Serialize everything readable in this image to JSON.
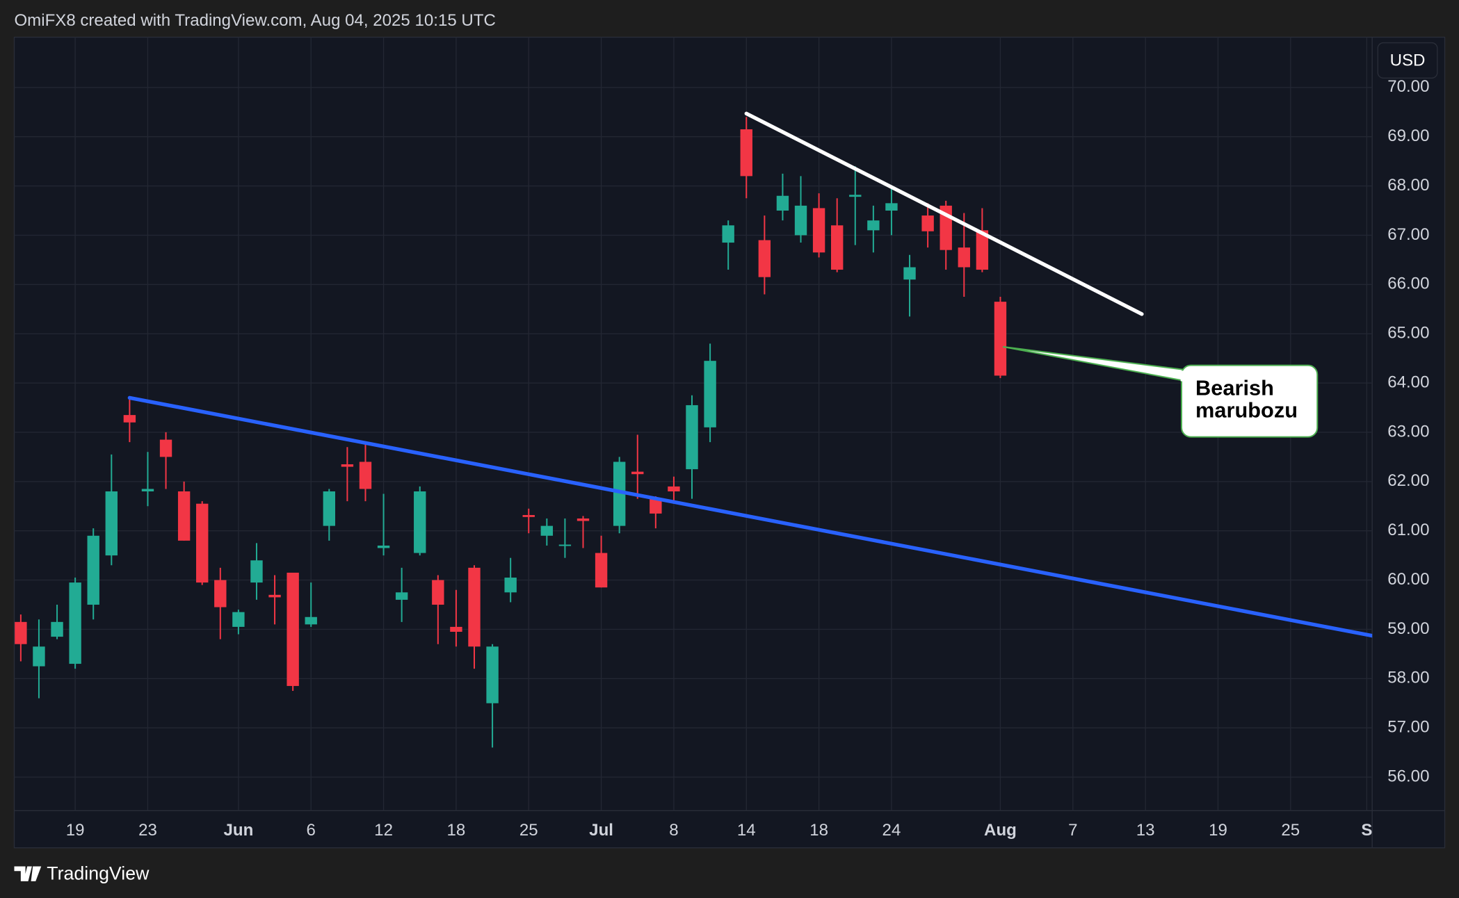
{
  "chart_data": {
    "type": "candlestick",
    "title": "OmiFX8 created with TradingView.com, Aug 04, 2025 10:15 UTC",
    "x": [
      0,
      1,
      2,
      3,
      4,
      5,
      6,
      7,
      8,
      9,
      10,
      11,
      12,
      13,
      14,
      15,
      16,
      17,
      18,
      19,
      20,
      21,
      22,
      23,
      24,
      25,
      26,
      27,
      28,
      29,
      30,
      31,
      32,
      33,
      34,
      35,
      36,
      37,
      38,
      39,
      40,
      41,
      42,
      43,
      44,
      45,
      46,
      47,
      48,
      49,
      50,
      51,
      52,
      53,
      54
    ],
    "open": [
      59.15,
      58.25,
      58.85,
      58.3,
      59.5,
      60.5,
      63.35,
      61.8,
      62.85,
      61.8,
      61.55,
      60.0,
      59.05,
      59.95,
      59.7,
      60.15,
      59.1,
      61.1,
      62.35,
      62.4,
      60.65,
      59.6,
      60.55,
      60.0,
      59.05,
      60.25,
      57.5,
      59.75,
      61.32,
      60.9,
      60.7,
      61.25,
      60.55,
      61.1,
      62.2,
      61.65,
      61.9,
      62.25,
      63.1,
      66.85,
      69.15,
      66.9,
      67.5,
      67.0,
      67.55,
      67.2,
      67.78,
      67.1,
      67.5,
      66.1,
      67.4,
      67.6,
      66.75,
      67.1,
      65.65
    ],
    "high": [
      59.3,
      59.2,
      59.5,
      60.05,
      61.05,
      62.55,
      63.7,
      62.6,
      63.0,
      62.0,
      61.6,
      60.25,
      59.4,
      60.75,
      60.1,
      60.15,
      59.95,
      61.85,
      62.7,
      62.75,
      61.75,
      60.25,
      61.9,
      60.1,
      59.8,
      60.3,
      58.7,
      60.45,
      61.45,
      61.25,
      61.25,
      61.3,
      60.9,
      62.5,
      62.95,
      61.7,
      62.1,
      63.75,
      64.8,
      67.3,
      69.4,
      67.4,
      68.25,
      68.2,
      67.85,
      67.75,
      68.4,
      67.6,
      68.0,
      66.6,
      67.65,
      67.7,
      67.45,
      67.55,
      65.75
    ],
    "low": [
      58.35,
      57.6,
      58.8,
      58.2,
      59.2,
      60.3,
      62.8,
      61.5,
      61.85,
      60.8,
      59.9,
      58.8,
      58.9,
      59.6,
      59.1,
      57.75,
      59.05,
      60.8,
      61.6,
      61.6,
      60.5,
      59.15,
      60.5,
      58.7,
      58.65,
      58.2,
      56.6,
      59.55,
      60.95,
      60.7,
      60.45,
      60.65,
      59.85,
      60.95,
      61.65,
      61.05,
      61.55,
      61.65,
      62.8,
      66.3,
      67.75,
      65.8,
      67.3,
      66.85,
      66.55,
      66.25,
      66.8,
      66.65,
      67.0,
      65.35,
      66.75,
      66.3,
      65.75,
      66.25,
      64.1
    ],
    "close": [
      58.7,
      58.65,
      59.15,
      59.95,
      60.9,
      61.8,
      63.2,
      61.85,
      62.5,
      60.8,
      59.95,
      59.45,
      59.35,
      60.4,
      59.65,
      57.85,
      59.25,
      61.8,
      62.3,
      61.85,
      60.7,
      59.75,
      61.8,
      59.5,
      58.95,
      58.65,
      58.65,
      60.05,
      61.28,
      61.1,
      60.72,
      61.2,
      59.85,
      62.4,
      62.15,
      61.35,
      61.8,
      63.55,
      64.45,
      67.2,
      68.2,
      66.15,
      67.8,
      67.6,
      66.65,
      66.3,
      67.82,
      67.3,
      67.65,
      66.35,
      67.08,
      66.7,
      66.35,
      66.3,
      64.15
    ],
    "up_color": "#22ab94",
    "down_color": "#f23645",
    "xlim": [
      -0.36,
      74.5
    ],
    "xticks": [
      {
        "value": 3,
        "label": "19"
      },
      {
        "value": 7,
        "label": "23"
      },
      {
        "value": 12,
        "label": "Jun"
      },
      {
        "value": 16,
        "label": "6"
      },
      {
        "value": 20,
        "label": "12"
      },
      {
        "value": 24,
        "label": "18"
      },
      {
        "value": 28,
        "label": "25"
      },
      {
        "value": 32,
        "label": "Jul"
      },
      {
        "value": 36,
        "label": "8"
      },
      {
        "value": 40,
        "label": "14"
      },
      {
        "value": 44,
        "label": "18"
      },
      {
        "value": 48,
        "label": "24"
      },
      {
        "value": 54,
        "label": "Aug"
      },
      {
        "value": 58,
        "label": "7"
      },
      {
        "value": 62,
        "label": "13"
      },
      {
        "value": 66,
        "label": "19"
      },
      {
        "value": 70,
        "label": "25"
      },
      {
        "value": 74.2,
        "label": "S"
      }
    ],
    "ylim": [
      55.32,
      71.02
    ],
    "yticks": [
      {
        "value": 56,
        "label": "56.00"
      },
      {
        "value": 57,
        "label": "57.00"
      },
      {
        "value": 58,
        "label": "58.00"
      },
      {
        "value": 59,
        "label": "59.00"
      },
      {
        "value": 60,
        "label": "60.00"
      },
      {
        "value": 61,
        "label": "61.00"
      },
      {
        "value": 62,
        "label": "62.00"
      },
      {
        "value": 63,
        "label": "63.00"
      },
      {
        "value": 64,
        "label": "64.00"
      },
      {
        "value": 65,
        "label": "65.00"
      },
      {
        "value": 66,
        "label": "66.00"
      },
      {
        "value": 67,
        "label": "67.00"
      },
      {
        "value": 68,
        "label": "68.00"
      },
      {
        "value": 69,
        "label": "69.00"
      },
      {
        "value": 70,
        "label": "70.00"
      }
    ],
    "grid": true,
    "trendlines": [
      {
        "color": "#2962ff",
        "x": [
          6,
          74.5
        ],
        "values": [
          63.7,
          58.87
        ]
      },
      {
        "color": "#ffffff",
        "x": [
          40,
          61.8
        ],
        "values": [
          69.47,
          65.4
        ]
      }
    ],
    "annotation": [
      "Bearish",
      "marubozu"
    ]
  },
  "currency_button": "USD",
  "brand": "TradingView"
}
